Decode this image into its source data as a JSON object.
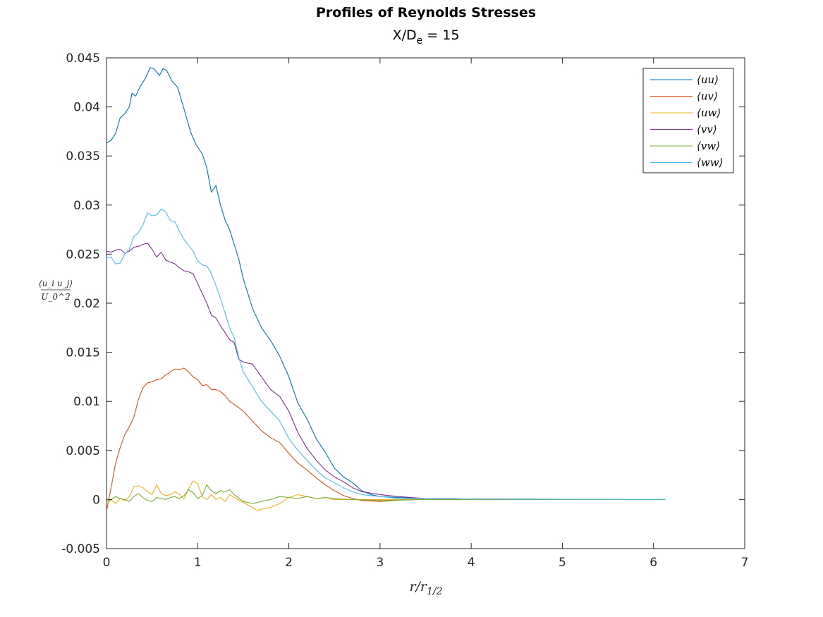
{
  "chart_data": {
    "type": "line",
    "title": "Profiles of Reynolds Stresses",
    "subtitle": {
      "prefix": "X/D",
      "subscript": "e",
      "suffix": " = 15"
    },
    "xlabel": {
      "main": "r/r",
      "subscript": "1/2"
    },
    "ylabel": {
      "numerator": "⟨u_i u_j⟩",
      "denominator": "U_0^2"
    },
    "xlim": [
      0,
      7
    ],
    "ylim": [
      -0.005,
      0.045
    ],
    "xticks": [
      0,
      1,
      2,
      3,
      4,
      5,
      6,
      7
    ],
    "xtick_labels": [
      "0",
      "1",
      "2",
      "3",
      "4",
      "5",
      "6",
      "7"
    ],
    "yticks": [
      -0.005,
      0,
      0.005,
      0.01,
      0.015,
      0.02,
      0.025,
      0.03,
      0.035,
      0.04,
      0.045
    ],
    "ytick_labels": [
      "-0.005",
      "0",
      "0.005",
      "0.01",
      "0.015",
      "0.02",
      "0.025",
      "0.03",
      "0.035",
      "0.04",
      "0.045"
    ],
    "grid": false,
    "legend": "top-right",
    "series": [
      {
        "name": "⟨uu⟩",
        "color": "#0072BD",
        "points": [
          [
            0,
            0.0363
          ],
          [
            0.05,
            0.0366
          ],
          [
            0.1,
            0.0373
          ],
          [
            0.15,
            0.0389
          ],
          [
            0.2,
            0.0393
          ],
          [
            0.25,
            0.04
          ],
          [
            0.28,
            0.0414
          ],
          [
            0.32,
            0.0411
          ],
          [
            0.37,
            0.0421
          ],
          [
            0.42,
            0.0428
          ],
          [
            0.48,
            0.044
          ],
          [
            0.52,
            0.0439
          ],
          [
            0.58,
            0.0432
          ],
          [
            0.62,
            0.0439
          ],
          [
            0.66,
            0.0437
          ],
          [
            0.72,
            0.0426
          ],
          [
            0.78,
            0.042
          ],
          [
            0.85,
            0.0398
          ],
          [
            0.92,
            0.0375
          ],
          [
            0.98,
            0.0362
          ],
          [
            1.05,
            0.0352
          ],
          [
            1.1,
            0.0338
          ],
          [
            1.15,
            0.0313
          ],
          [
            1.2,
            0.032
          ],
          [
            1.25,
            0.03
          ],
          [
            1.3,
            0.0285
          ],
          [
            1.35,
            0.0275
          ],
          [
            1.4,
            0.026
          ],
          [
            1.45,
            0.0245
          ],
          [
            1.5,
            0.0225
          ],
          [
            1.55,
            0.021
          ],
          [
            1.6,
            0.0195
          ],
          [
            1.7,
            0.0175
          ],
          [
            1.8,
            0.0162
          ],
          [
            1.9,
            0.0146
          ],
          [
            2.0,
            0.0125
          ],
          [
            2.1,
            0.0098
          ],
          [
            2.2,
            0.0082
          ],
          [
            2.3,
            0.0062
          ],
          [
            2.4,
            0.0048
          ],
          [
            2.5,
            0.0032
          ],
          [
            2.6,
            0.0023
          ],
          [
            2.7,
            0.0017
          ],
          [
            2.8,
            0.0009
          ],
          [
            2.9,
            0.0005
          ],
          [
            3.0,
            0.0003
          ],
          [
            3.2,
            0.0002
          ],
          [
            3.5,
            0.0001
          ],
          [
            4,
            5e-05
          ],
          [
            5,
            3e-05
          ],
          [
            6.13,
            2e-05
          ]
        ]
      },
      {
        "name": "⟨uv⟩",
        "color": "#D95319",
        "points": [
          [
            0,
            -0.0012
          ],
          [
            0.05,
            0.0012
          ],
          [
            0.1,
            0.0037
          ],
          [
            0.15,
            0.0053
          ],
          [
            0.2,
            0.0066
          ],
          [
            0.25,
            0.0074
          ],
          [
            0.3,
            0.0084
          ],
          [
            0.35,
            0.0102
          ],
          [
            0.4,
            0.0114
          ],
          [
            0.45,
            0.0119
          ],
          [
            0.5,
            0.012
          ],
          [
            0.55,
            0.0122
          ],
          [
            0.6,
            0.0123
          ],
          [
            0.65,
            0.0127
          ],
          [
            0.7,
            0.013
          ],
          [
            0.75,
            0.0133
          ],
          [
            0.8,
            0.0132
          ],
          [
            0.85,
            0.0134
          ],
          [
            0.9,
            0.013
          ],
          [
            0.95,
            0.0125
          ],
          [
            1.0,
            0.0122
          ],
          [
            1.05,
            0.0116
          ],
          [
            1.1,
            0.0117
          ],
          [
            1.15,
            0.0112
          ],
          [
            1.2,
            0.0112
          ],
          [
            1.25,
            0.011
          ],
          [
            1.3,
            0.0106
          ],
          [
            1.35,
            0.01
          ],
          [
            1.4,
            0.0097
          ],
          [
            1.5,
            0.009
          ],
          [
            1.6,
            0.008
          ],
          [
            1.7,
            0.007
          ],
          [
            1.8,
            0.0063
          ],
          [
            1.9,
            0.0058
          ],
          [
            2.0,
            0.0047
          ],
          [
            2.1,
            0.0037
          ],
          [
            2.2,
            0.003
          ],
          [
            2.3,
            0.0022
          ],
          [
            2.4,
            0.0015
          ],
          [
            2.5,
            0.0009
          ],
          [
            2.6,
            0.0004
          ],
          [
            2.7,
            0.0001
          ],
          [
            2.8,
            -0.0001
          ],
          [
            3.0,
            -0.0002
          ],
          [
            3.3,
            0.0
          ],
          [
            4,
            0.0
          ],
          [
            5,
            0.0
          ],
          [
            6.13,
            0.0
          ]
        ]
      },
      {
        "name": "⟨uw⟩",
        "color": "#EDB120",
        "points": [
          [
            0,
            -0.0005
          ],
          [
            0.05,
            0.0
          ],
          [
            0.1,
            -0.0004
          ],
          [
            0.15,
            0.0001
          ],
          [
            0.2,
            -0.0001
          ],
          [
            0.25,
            0.0003
          ],
          [
            0.3,
            0.0013
          ],
          [
            0.35,
            0.0014
          ],
          [
            0.4,
            0.0012
          ],
          [
            0.45,
            0.0008
          ],
          [
            0.5,
            0.0005
          ],
          [
            0.55,
            0.0015
          ],
          [
            0.6,
            0.0006
          ],
          [
            0.65,
            0.0004
          ],
          [
            0.7,
            0.0005
          ],
          [
            0.75,
            0.0008
          ],
          [
            0.8,
            0.0005
          ],
          [
            0.85,
            0.0001
          ],
          [
            0.9,
            0.0011
          ],
          [
            0.95,
            0.0019
          ],
          [
            1.0,
            0.0016
          ],
          [
            1.05,
            0.0003
          ],
          [
            1.1,
            0.0
          ],
          [
            1.15,
            0.0005
          ],
          [
            1.2,
            0.0
          ],
          [
            1.25,
            0.0002
          ],
          [
            1.3,
            -0.0002
          ],
          [
            1.35,
            0.0005
          ],
          [
            1.4,
            0.0002
          ],
          [
            1.5,
            -0.0003
          ],
          [
            1.6,
            -0.0008
          ],
          [
            1.65,
            -0.0011
          ],
          [
            1.7,
            -0.001
          ],
          [
            1.8,
            -0.0008
          ],
          [
            1.9,
            -0.0004
          ],
          [
            2.0,
            0.0002
          ],
          [
            2.1,
            0.0005
          ],
          [
            2.2,
            0.0003
          ],
          [
            2.3,
            0.0001
          ],
          [
            2.4,
            0.0002
          ],
          [
            2.5,
            0.0
          ],
          [
            2.7,
            0.0
          ],
          [
            3.0,
            0.0
          ],
          [
            4,
            0.0
          ],
          [
            5,
            0.0
          ],
          [
            6.13,
            0.0
          ]
        ]
      },
      {
        "name": "⟨vv⟩",
        "color": "#7E2F8E",
        "points": [
          [
            0,
            0.0253
          ],
          [
            0.05,
            0.0252
          ],
          [
            0.1,
            0.0254
          ],
          [
            0.15,
            0.0255
          ],
          [
            0.2,
            0.0251
          ],
          [
            0.25,
            0.0253
          ],
          [
            0.3,
            0.0257
          ],
          [
            0.35,
            0.0258
          ],
          [
            0.4,
            0.026
          ],
          [
            0.45,
            0.0261
          ],
          [
            0.5,
            0.0255
          ],
          [
            0.55,
            0.0247
          ],
          [
            0.6,
            0.0252
          ],
          [
            0.65,
            0.0244
          ],
          [
            0.7,
            0.0242
          ],
          [
            0.75,
            0.024
          ],
          [
            0.8,
            0.0236
          ],
          [
            0.85,
            0.0233
          ],
          [
            0.9,
            0.0232
          ],
          [
            0.95,
            0.023
          ],
          [
            1.0,
            0.022
          ],
          [
            1.05,
            0.021
          ],
          [
            1.1,
            0.02
          ],
          [
            1.15,
            0.0188
          ],
          [
            1.2,
            0.0185
          ],
          [
            1.25,
            0.0177
          ],
          [
            1.3,
            0.017
          ],
          [
            1.35,
            0.0163
          ],
          [
            1.4,
            0.016
          ],
          [
            1.45,
            0.0143
          ],
          [
            1.5,
            0.014
          ],
          [
            1.6,
            0.0138
          ],
          [
            1.7,
            0.0125
          ],
          [
            1.8,
            0.0112
          ],
          [
            1.9,
            0.0105
          ],
          [
            2.0,
            0.009
          ],
          [
            2.1,
            0.0068
          ],
          [
            2.2,
            0.0052
          ],
          [
            2.3,
            0.004
          ],
          [
            2.4,
            0.003
          ],
          [
            2.5,
            0.0023
          ],
          [
            2.6,
            0.0018
          ],
          [
            2.7,
            0.0012
          ],
          [
            2.8,
            0.0008
          ],
          [
            3.0,
            0.0005
          ],
          [
            3.2,
            0.0003
          ],
          [
            3.5,
            0.0001
          ],
          [
            4,
            5e-05
          ],
          [
            5,
            3e-05
          ],
          [
            6.13,
            2e-05
          ]
        ]
      },
      {
        "name": "⟨vw⟩",
        "color": "#77AC30",
        "points": [
          [
            0,
            -0.0002
          ],
          [
            0.05,
            0.0
          ],
          [
            0.1,
            0.0003
          ],
          [
            0.15,
            0.0001
          ],
          [
            0.2,
            0.0
          ],
          [
            0.25,
            -0.0002
          ],
          [
            0.3,
            0.0003
          ],
          [
            0.35,
            0.0006
          ],
          [
            0.4,
            0.0002
          ],
          [
            0.45,
            -0.0001
          ],
          [
            0.5,
            -0.0002
          ],
          [
            0.55,
            0.0002
          ],
          [
            0.6,
            0.0001
          ],
          [
            0.65,
            0.0
          ],
          [
            0.7,
            0.0002
          ],
          [
            0.75,
            0.0003
          ],
          [
            0.8,
            0.0001
          ],
          [
            0.85,
            0.0004
          ],
          [
            0.9,
            0.001
          ],
          [
            0.95,
            0.0007
          ],
          [
            1.0,
            0.0001
          ],
          [
            1.05,
            0.0004
          ],
          [
            1.1,
            0.0015
          ],
          [
            1.15,
            0.0009
          ],
          [
            1.2,
            0.0006
          ],
          [
            1.25,
            0.0009
          ],
          [
            1.3,
            0.0008
          ],
          [
            1.35,
            0.001
          ],
          [
            1.4,
            0.0005
          ],
          [
            1.5,
            -0.0002
          ],
          [
            1.6,
            -0.0004
          ],
          [
            1.7,
            -0.0002
          ],
          [
            1.8,
            0.0
          ],
          [
            1.9,
            0.0003
          ],
          [
            2.0,
            0.0002
          ],
          [
            2.1,
            0.0001
          ],
          [
            2.2,
            0.0003
          ],
          [
            2.3,
            0.0001
          ],
          [
            2.4,
            0.0002
          ],
          [
            2.5,
            0.0001
          ],
          [
            2.7,
            0.0
          ],
          [
            3.0,
            -0.0001
          ],
          [
            3.5,
            0.0
          ],
          [
            4,
            0.0
          ],
          [
            5,
            0.0
          ],
          [
            6.13,
            0.0
          ]
        ]
      },
      {
        "name": "⟨ww⟩",
        "color": "#4DBEEE",
        "points": [
          [
            0,
            0.0246
          ],
          [
            0.05,
            0.0247
          ],
          [
            0.1,
            0.024
          ],
          [
            0.15,
            0.0241
          ],
          [
            0.2,
            0.025
          ],
          [
            0.25,
            0.0255
          ],
          [
            0.3,
            0.0268
          ],
          [
            0.35,
            0.0272
          ],
          [
            0.4,
            0.028
          ],
          [
            0.45,
            0.0292
          ],
          [
            0.5,
            0.0289
          ],
          [
            0.55,
            0.029
          ],
          [
            0.6,
            0.0296
          ],
          [
            0.65,
            0.0293
          ],
          [
            0.7,
            0.0284
          ],
          [
            0.75,
            0.0283
          ],
          [
            0.8,
            0.0273
          ],
          [
            0.85,
            0.0265
          ],
          [
            0.9,
            0.0259
          ],
          [
            0.95,
            0.0253
          ],
          [
            1.0,
            0.0243
          ],
          [
            1.05,
            0.0239
          ],
          [
            1.1,
            0.0238
          ],
          [
            1.15,
            0.023
          ],
          [
            1.2,
            0.0218
          ],
          [
            1.25,
            0.0205
          ],
          [
            1.3,
            0.019
          ],
          [
            1.35,
            0.0175
          ],
          [
            1.4,
            0.0165
          ],
          [
            1.45,
            0.0145
          ],
          [
            1.5,
            0.013
          ],
          [
            1.6,
            0.0115
          ],
          [
            1.7,
            0.01
          ],
          [
            1.8,
            0.009
          ],
          [
            1.9,
            0.008
          ],
          [
            2.0,
            0.0062
          ],
          [
            2.1,
            0.005
          ],
          [
            2.2,
            0.004
          ],
          [
            2.3,
            0.003
          ],
          [
            2.4,
            0.0022
          ],
          [
            2.5,
            0.0017
          ],
          [
            2.6,
            0.0012
          ],
          [
            2.7,
            0.0008
          ],
          [
            2.8,
            0.0005
          ],
          [
            3.0,
            0.0003
          ],
          [
            3.2,
            0.0001
          ],
          [
            3.5,
            0.0001
          ],
          [
            4,
            5e-05
          ],
          [
            5,
            3e-05
          ],
          [
            6.13,
            2e-05
          ]
        ]
      }
    ]
  }
}
